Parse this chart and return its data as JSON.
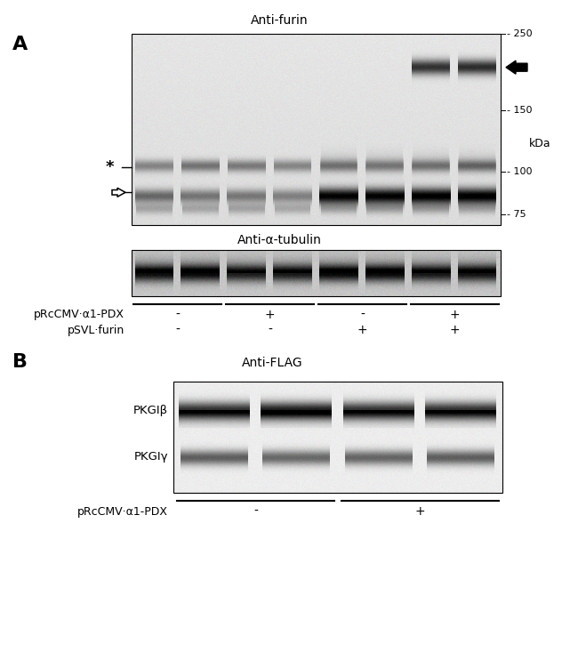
{
  "panel_A_label": "A",
  "panel_B_label": "B",
  "anti_furin_label": "Anti-furin",
  "anti_tubulin_label": "Anti-α-tubulin",
  "anti_flag_label": "Anti-FLAG",
  "kda_label": "kDa",
  "kda_vals": [
    250,
    150,
    100,
    75
  ],
  "pkgib_label": "PKGIβ",
  "pkgiy_label": "PKGIγ",
  "prcmv_label": "pRcCMV·α1-PDX",
  "psvl_label": "pSVL·furin",
  "prcmv_label_B": "pRcCMV·α1-PDX",
  "group_A_signs_row1": [
    "-",
    "+",
    "-",
    "+"
  ],
  "group_A_signs_row2": [
    "-",
    "-",
    "+",
    "+"
  ],
  "group_B_signs": [
    "-",
    "+"
  ],
  "bg_color": "#ffffff",
  "figw": 6.5,
  "figh": 7.33,
  "dpi": 100
}
